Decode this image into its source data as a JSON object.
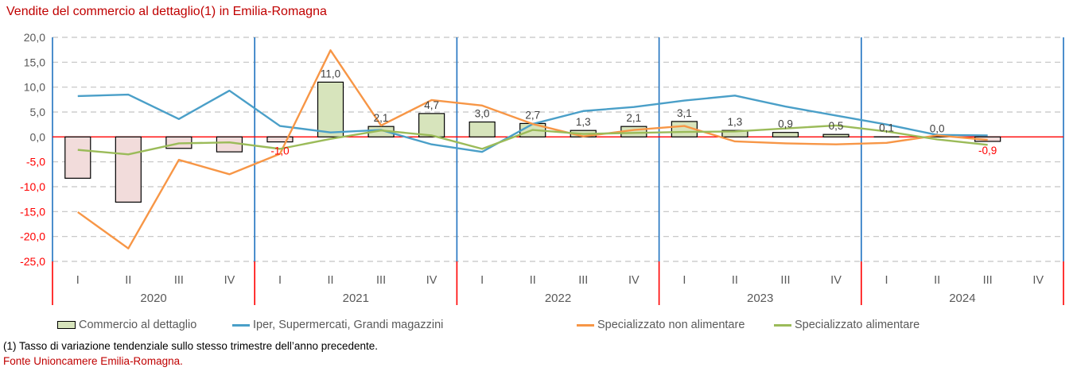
{
  "title": "Vendite del commercio al dettaglio(1) in Emilia-Romagna",
  "footnotes": {
    "note": "(1) Tasso di variazione tendenziale sullo stesso trimestre dell’anno precedente.",
    "source": "Fonte Unioncamere Emilia-Romagna."
  },
  "colors": {
    "title_red": "#c00000",
    "axis_red": "#ff0000",
    "separator_blue": "#1f72c0",
    "grid_gray": "#c3c3c3",
    "label_gray": "#595959",
    "data_label_gray": "#3f3f3f",
    "bar_positive_fill": "#d7e4bc",
    "bar_negative_fill": "#f2dcdb",
    "bar_border": "#000000",
    "line_iper": "#4a9fc8",
    "line_non_alimentare": "#f79646",
    "line_alimentare": "#9bbb59"
  },
  "legend": {
    "items": [
      {
        "label": "Commercio al dettaglio",
        "swatch": "bar",
        "color": "#d7e4bc"
      },
      {
        "label": "Iper, Supermercati, Grandi magazzini",
        "swatch": "line",
        "color": "#4a9fc8"
      },
      {
        "label": "Specializzato non alimentare",
        "swatch": "line",
        "color": "#f79646"
      },
      {
        "label": "Specializzato alimentare",
        "swatch": "line",
        "color": "#9bbb59"
      }
    ]
  },
  "chart_data": {
    "type": "bar+line combo",
    "title": "Vendite del commercio al dettaglio(1) in Emilia-Romagna",
    "years": [
      "2020",
      "2021",
      "2022",
      "2023",
      "2024"
    ],
    "quarters": [
      "I",
      "II",
      "III",
      "IV"
    ],
    "y_axis": {
      "min": -25,
      "max": 20,
      "step": 5,
      "tick_labels": [
        "20,0",
        "15,0",
        "10,0",
        "5,0",
        "0,0",
        "-5,0",
        "-10,0",
        "-15,0",
        "-20,0",
        "-25,0"
      ],
      "grid": true
    },
    "legend_position": "bottom",
    "series": [
      {
        "name": "Commercio al dettaglio",
        "type": "bar",
        "values": [
          -8.3,
          -13.1,
          -2.3,
          -3.0,
          -1.0,
          11.0,
          2.1,
          4.7,
          3.0,
          2.7,
          1.3,
          2.1,
          3.1,
          1.3,
          0.9,
          0.5,
          0.1,
          0.0,
          -0.9,
          null
        ],
        "point_labels": [
          null,
          null,
          null,
          null,
          "-1,0",
          "11,0",
          "2,1",
          "4,7",
          "3,0",
          "2,7",
          "1,3",
          "2,1",
          "3,1",
          "1,3",
          "0,9",
          "0,5",
          "0,1",
          "0,0",
          "-0,9",
          null
        ]
      },
      {
        "name": "Iper, Supermercati, Grandi magazzini",
        "type": "line",
        "values": [
          8.2,
          8.5,
          3.6,
          9.3,
          2.2,
          0.9,
          1.4,
          -1.5,
          -3.0,
          2.6,
          5.2,
          6.0,
          7.3,
          8.3,
          6.1,
          4.3,
          2.5,
          0.4,
          0.3,
          null
        ]
      },
      {
        "name": "Specializzato non alimentare",
        "type": "line",
        "values": [
          -15.1,
          -22.4,
          -4.6,
          -7.5,
          -3.4,
          17.4,
          2.3,
          7.4,
          6.3,
          2.6,
          0.1,
          1.4,
          2.2,
          -0.9,
          -1.3,
          -1.5,
          -1.2,
          0.3,
          -0.6,
          null
        ]
      },
      {
        "name": "Specializzato alimentare",
        "type": "line",
        "values": [
          -2.6,
          -3.5,
          -1.3,
          -1.1,
          -2.4,
          -0.4,
          1.3,
          0.3,
          -2.4,
          1.4,
          0.6,
          0.8,
          1.0,
          1.1,
          1.7,
          2.3,
          1.1,
          -0.5,
          -1.6,
          null
        ]
      }
    ]
  }
}
